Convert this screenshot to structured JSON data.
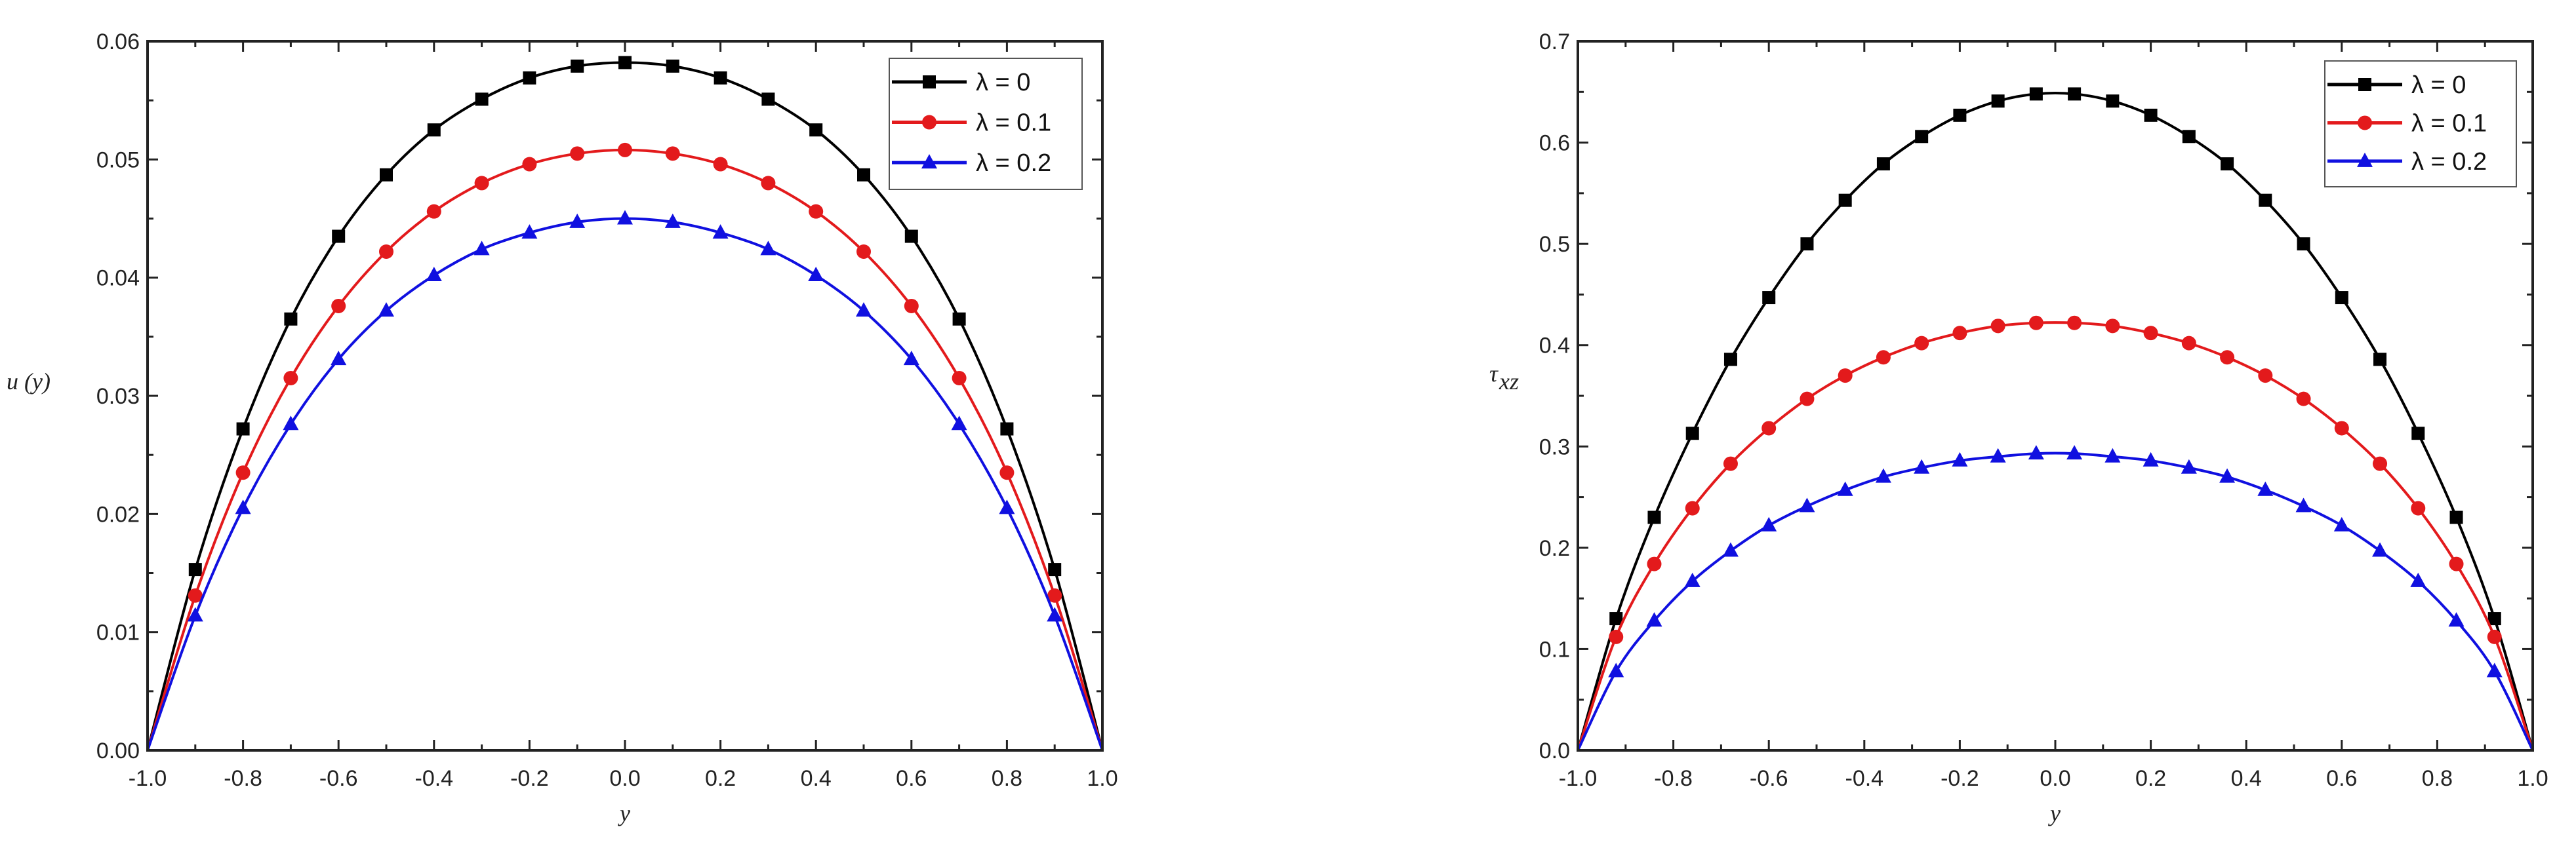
{
  "chart_data": [
    {
      "type": "line",
      "title": "",
      "xlabel": "y",
      "ylabel": "u (y)",
      "xlim": [
        -1.0,
        1.0
      ],
      "ylim": [
        0.0,
        0.06
      ],
      "xticks": [
        "-1.0",
        "-0.8",
        "-0.6",
        "-0.4",
        "-0.2",
        "0.0",
        "0.2",
        "0.4",
        "0.6",
        "0.8",
        "1.0"
      ],
      "yticks": [
        "0.00",
        "0.01",
        "0.02",
        "0.03",
        "0.04",
        "0.05",
        "0.06"
      ],
      "grid": false,
      "legend_position": "top-right",
      "x": [
        -1.0,
        -0.9,
        -0.8,
        -0.7,
        -0.6,
        -0.5,
        -0.4,
        -0.3,
        -0.2,
        -0.1,
        0.0,
        0.1,
        0.2,
        0.3,
        0.4,
        0.5,
        0.6,
        0.7,
        0.8,
        0.9,
        1.0
      ],
      "series": [
        {
          "name": "λ = 0",
          "color": "#000000",
          "marker": "square",
          "values": [
            0,
            0.0153,
            0.0272,
            0.0365,
            0.0435,
            0.0487,
            0.0525,
            0.0551,
            0.0569,
            0.0579,
            0.0582,
            0.0579,
            0.0569,
            0.0551,
            0.0525,
            0.0487,
            0.0435,
            0.0365,
            0.0272,
            0.0153,
            0
          ]
        },
        {
          "name": "λ = 0.1",
          "color": "#e31a1c",
          "marker": "circle",
          "values": [
            0,
            0.0131,
            0.0235,
            0.0315,
            0.0376,
            0.0422,
            0.0456,
            0.048,
            0.0496,
            0.0505,
            0.0508,
            0.0505,
            0.0496,
            0.048,
            0.0456,
            0.0422,
            0.0376,
            0.0315,
            0.0235,
            0.0131,
            0
          ]
        },
        {
          "name": "λ = 0.2",
          "color": "#1010e0",
          "marker": "triangle",
          "values": [
            0,
            0.0114,
            0.0205,
            0.0276,
            0.0331,
            0.0372,
            0.0402,
            0.0424,
            0.0438,
            0.0447,
            0.045,
            0.0447,
            0.0438,
            0.0424,
            0.0402,
            0.0372,
            0.0331,
            0.0276,
            0.0205,
            0.0114,
            0
          ]
        }
      ]
    },
    {
      "type": "line",
      "title": "",
      "xlabel": "y",
      "ylabel": "τ",
      "ylabel_sub": "xz",
      "xlim": [
        -1.0,
        1.0
      ],
      "ylim": [
        0.0,
        0.7
      ],
      "xticks": [
        "-1.0",
        "-0.8",
        "-0.6",
        "-0.4",
        "-0.2",
        "0.0",
        "0.2",
        "0.4",
        "0.6",
        "0.8",
        "1.0"
      ],
      "yticks": [
        "0.0",
        "0.1",
        "0.2",
        "0.3",
        "0.4",
        "0.5",
        "0.6",
        "0.7"
      ],
      "grid": false,
      "legend_position": "top-right",
      "x": [
        -1.0,
        -0.92,
        -0.84,
        -0.76,
        -0.68,
        -0.6,
        -0.52,
        -0.44,
        -0.36,
        -0.28,
        -0.2,
        -0.12,
        -0.04,
        0.04,
        0.12,
        0.2,
        0.28,
        0.36,
        0.44,
        0.52,
        0.6,
        0.68,
        0.76,
        0.84,
        0.92,
        1.0
      ],
      "series": [
        {
          "name": "λ = 0",
          "color": "#000000",
          "marker": "square",
          "values": [
            0,
            0.13,
            0.23,
            0.313,
            0.386,
            0.447,
            0.5,
            0.543,
            0.579,
            0.606,
            0.627,
            0.641,
            0.648,
            0.648,
            0.641,
            0.627,
            0.606,
            0.579,
            0.543,
            0.5,
            0.447,
            0.386,
            0.313,
            0.23,
            0.13,
            0
          ]
        },
        {
          "name": "λ = 0.1",
          "color": "#e31a1c",
          "marker": "circle",
          "values": [
            0,
            0.112,
            0.184,
            0.239,
            0.283,
            0.318,
            0.347,
            0.37,
            0.388,
            0.402,
            0.412,
            0.419,
            0.422,
            0.422,
            0.419,
            0.412,
            0.402,
            0.388,
            0.37,
            0.347,
            0.318,
            0.283,
            0.239,
            0.184,
            0.112,
            0
          ]
        },
        {
          "name": "λ = 0.2",
          "color": "#1010e0",
          "marker": "triangle",
          "values": [
            0,
            0.078,
            0.128,
            0.167,
            0.197,
            0.222,
            0.241,
            0.257,
            0.27,
            0.279,
            0.286,
            0.29,
            0.293,
            0.293,
            0.29,
            0.286,
            0.279,
            0.27,
            0.257,
            0.241,
            0.222,
            0.197,
            0.167,
            0.128,
            0.078,
            0
          ]
        }
      ]
    }
  ]
}
